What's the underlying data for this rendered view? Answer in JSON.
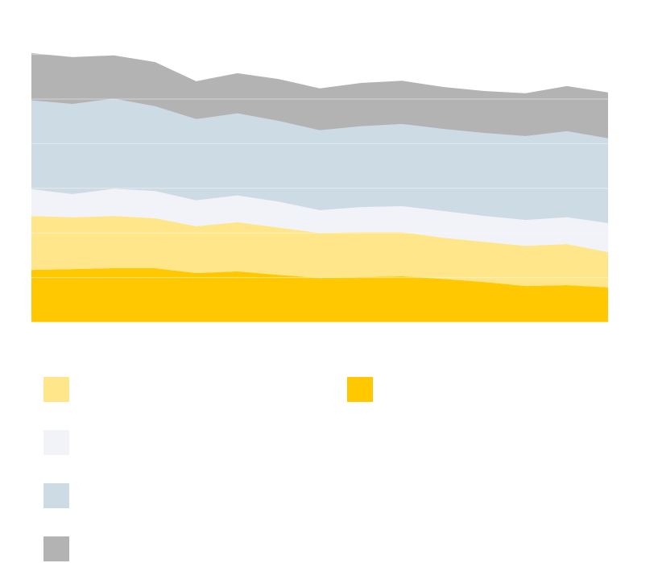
{
  "chart_data": {
    "type": "stacked_area",
    "categories": [
      null,
      null,
      null,
      null,
      null,
      null,
      null,
      null,
      null,
      null,
      null,
      null,
      null,
      null,
      null
    ],
    "series": [
      {
        "color": "#ffc800",
        "values": [
          1.17,
          1.19,
          1.21,
          1.21,
          1.1,
          1.14,
          1.06,
          0.99,
          1.01,
          1.03,
          0.97,
          0.9,
          0.81,
          0.83,
          0.78
        ]
      },
      {
        "color": "#ffe68a",
        "values": [
          1.21,
          1.16,
          1.17,
          1.12,
          1.05,
          1.1,
          1.06,
          1.01,
          1.01,
          0.99,
          0.92,
          0.9,
          0.9,
          0.92,
          0.79
        ]
      },
      {
        "color": "#f1f3f8",
        "values": [
          0.6,
          0.52,
          0.61,
          0.61,
          0.58,
          0.6,
          0.58,
          0.51,
          0.56,
          0.58,
          0.6,
          0.58,
          0.58,
          0.6,
          0.65
        ]
      },
      {
        "color": "#cddbe4",
        "values": [
          1.99,
          2.02,
          2.02,
          1.9,
          1.82,
          1.84,
          1.81,
          1.79,
          1.81,
          1.84,
          1.84,
          1.86,
          1.88,
          1.93,
          1.9
        ]
      },
      {
        "color": "#b3b3b3",
        "values": [
          1.06,
          1.05,
          0.97,
          0.99,
          0.85,
          0.9,
          0.94,
          0.94,
          0.97,
          0.97,
          0.94,
          0.94,
          0.96,
          1.01,
          1.03
        ]
      }
    ],
    "ylim": [
      0,
      6
    ],
    "yticks": [
      0,
      1,
      2,
      3,
      4,
      5,
      6
    ],
    "grid": true,
    "legend_order": [
      1,
      2,
      3,
      4,
      0
    ]
  }
}
